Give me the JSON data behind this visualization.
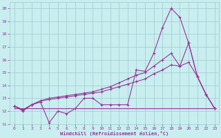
{
  "xlabel": "Windchill (Refroidissement éolien,°C)",
  "bg_color": "#c8eef0",
  "grid_color": "#a0c8cc",
  "line_color": "#993399",
  "marker": "+",
  "marker_size": 3,
  "marker_lw": 0.8,
  "line_width": 0.8,
  "xlim": [
    -0.5,
    23.5
  ],
  "ylim": [
    11,
    20.5
  ],
  "yticks": [
    11,
    12,
    13,
    14,
    15,
    16,
    17,
    18,
    19,
    20
  ],
  "xticks": [
    0,
    1,
    2,
    3,
    4,
    5,
    6,
    7,
    8,
    9,
    10,
    11,
    12,
    13,
    14,
    15,
    16,
    17,
    18,
    19,
    20,
    21,
    22,
    23
  ],
  "line_jagged": [
    12.4,
    12.0,
    12.5,
    12.7,
    11.1,
    12.0,
    11.8,
    12.2,
    13.0,
    13.0,
    12.5,
    12.5,
    12.5,
    12.5,
    15.2,
    15.1,
    16.5,
    18.5,
    20.0,
    19.3,
    17.3,
    14.7,
    13.3,
    12.2
  ],
  "line_upper": [
    12.4,
    12.1,
    12.5,
    12.8,
    13.0,
    13.1,
    13.2,
    13.3,
    13.4,
    13.5,
    13.7,
    13.9,
    14.2,
    14.5,
    14.8,
    15.0,
    15.5,
    16.0,
    16.5,
    15.5,
    17.3,
    14.7,
    13.3,
    12.2
  ],
  "line_lower": [
    12.4,
    12.1,
    12.5,
    12.8,
    12.9,
    13.0,
    13.1,
    13.2,
    13.3,
    13.4,
    13.5,
    13.7,
    13.9,
    14.1,
    14.3,
    14.5,
    14.9,
    15.2,
    15.6,
    15.5,
    15.8,
    14.7,
    13.3,
    12.2
  ],
  "line_flat": [
    12.2,
    12.2,
    12.2,
    12.2,
    12.2,
    12.2,
    12.2,
    12.2,
    12.2,
    12.2,
    12.2,
    12.2,
    12.2,
    12.2,
    12.2,
    12.2,
    12.2,
    12.2,
    12.2,
    12.2,
    12.2,
    12.2,
    12.2,
    12.2
  ]
}
